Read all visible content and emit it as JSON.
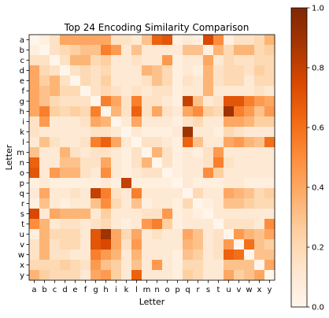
{
  "chart_data": {
    "type": "heatmap",
    "title": "Top 24 Encoding Similarity Comparison",
    "xlabel": "Letter",
    "ylabel": "Letter",
    "x_labels": [
      "a",
      "b",
      "c",
      "d",
      "e",
      "f",
      "g",
      "h",
      "i",
      "k",
      "l",
      "m",
      "n",
      "o",
      "p",
      "q",
      "r",
      "s",
      "t",
      "u",
      "v",
      "w",
      "x",
      "y"
    ],
    "y_labels": [
      "a",
      "b",
      "c",
      "d",
      "e",
      "f",
      "g",
      "h",
      "i",
      "k",
      "l",
      "m",
      "n",
      "o",
      "p",
      "q",
      "r",
      "s",
      "t",
      "u",
      "v",
      "w",
      "x",
      "y"
    ],
    "colormap": "Oranges",
    "colorbar": {
      "min": 0.0,
      "max": 1.0,
      "ticks": [
        "0.0",
        "0.2",
        "0.4",
        "0.6",
        "0.8",
        "1.0"
      ]
    },
    "values": [
      [
        0.0,
        0.05,
        0.15,
        0.4,
        0.4,
        0.4,
        0.4,
        0.4,
        0.15,
        0.15,
        0.1,
        0.3,
        0.65,
        0.7,
        0.05,
        0.1,
        0.05,
        0.75,
        0.5,
        0.05,
        0.15,
        0.15,
        0.2,
        0.35
      ],
      [
        0.05,
        0.0,
        0.15,
        0.2,
        0.25,
        0.3,
        0.3,
        0.55,
        0.45,
        0.1,
        0.3,
        0.1,
        0.1,
        0.1,
        0.1,
        0.3,
        0.3,
        0.05,
        0.35,
        0.2,
        0.35,
        0.35,
        0.2,
        0.25
      ],
      [
        0.15,
        0.15,
        0.0,
        0.15,
        0.35,
        0.35,
        0.2,
        0.25,
        0.1,
        0.1,
        0.15,
        0.1,
        0.1,
        0.45,
        0.05,
        0.1,
        0.1,
        0.4,
        0.1,
        0.2,
        0.15,
        0.15,
        0.2,
        0.2
      ],
      [
        0.4,
        0.2,
        0.15,
        0.0,
        0.15,
        0.2,
        0.15,
        0.2,
        0.1,
        0.1,
        0.1,
        0.35,
        0.3,
        0.2,
        0.05,
        0.1,
        0.05,
        0.35,
        0.15,
        0.2,
        0.2,
        0.15,
        0.25,
        0.2
      ],
      [
        0.4,
        0.25,
        0.35,
        0.15,
        0.0,
        0.2,
        0.15,
        0.25,
        0.1,
        0.1,
        0.1,
        0.15,
        0.3,
        0.2,
        0.05,
        0.15,
        0.1,
        0.35,
        0.15,
        0.2,
        0.2,
        0.1,
        0.2,
        0.2
      ],
      [
        0.4,
        0.3,
        0.35,
        0.2,
        0.2,
        0.0,
        0.15,
        0.2,
        0.15,
        0.1,
        0.15,
        0.1,
        0.15,
        0.15,
        0.05,
        0.1,
        0.1,
        0.35,
        0.1,
        0.1,
        0.1,
        0.1,
        0.15,
        0.1
      ],
      [
        0.4,
        0.3,
        0.2,
        0.15,
        0.15,
        0.15,
        0.0,
        0.55,
        0.4,
        0.15,
        0.55,
        0.15,
        0.15,
        0.1,
        0.05,
        0.8,
        0.3,
        0.1,
        0.15,
        0.7,
        0.7,
        0.55,
        0.45,
        0.4
      ],
      [
        0.4,
        0.55,
        0.25,
        0.2,
        0.25,
        0.2,
        0.55,
        0.0,
        0.35,
        0.15,
        0.65,
        0.15,
        0.4,
        0.15,
        0.1,
        0.4,
        0.5,
        0.25,
        0.2,
        0.9,
        0.55,
        0.45,
        0.3,
        0.45
      ],
      [
        0.15,
        0.45,
        0.1,
        0.1,
        0.1,
        0.15,
        0.4,
        0.35,
        0.0,
        0.1,
        0.4,
        0.1,
        0.1,
        0.1,
        0.05,
        0.15,
        0.2,
        0.1,
        0.1,
        0.4,
        0.4,
        0.35,
        0.25,
        0.25
      ],
      [
        0.15,
        0.1,
        0.1,
        0.1,
        0.1,
        0.1,
        0.15,
        0.15,
        0.1,
        0.0,
        0.1,
        0.05,
        0.05,
        0.05,
        0.1,
        0.9,
        0.1,
        0.1,
        0.05,
        0.2,
        0.15,
        0.1,
        0.1,
        0.1
      ],
      [
        0.1,
        0.3,
        0.15,
        0.1,
        0.1,
        0.15,
        0.55,
        0.65,
        0.4,
        0.1,
        0.0,
        0.15,
        0.15,
        0.1,
        0.05,
        0.65,
        0.3,
        0.1,
        0.1,
        0.4,
        0.45,
        0.35,
        0.3,
        0.6
      ],
      [
        0.3,
        0.1,
        0.1,
        0.35,
        0.15,
        0.1,
        0.15,
        0.15,
        0.1,
        0.05,
        0.15,
        0.0,
        0.35,
        0.15,
        0.05,
        0.1,
        0.05,
        0.15,
        0.45,
        0.1,
        0.1,
        0.1,
        0.1,
        0.1
      ],
      [
        0.65,
        0.1,
        0.1,
        0.3,
        0.3,
        0.15,
        0.15,
        0.4,
        0.1,
        0.05,
        0.15,
        0.35,
        0.0,
        0.15,
        0.05,
        0.1,
        0.1,
        0.15,
        0.55,
        0.15,
        0.1,
        0.1,
        0.1,
        0.1
      ],
      [
        0.7,
        0.1,
        0.45,
        0.35,
        0.35,
        0.15,
        0.1,
        0.5,
        0.1,
        0.05,
        0.1,
        0.15,
        0.15,
        0.0,
        0.05,
        0.1,
        0.1,
        0.5,
        0.25,
        0.1,
        0.1,
        0.1,
        0.1,
        0.1
      ],
      [
        0.05,
        0.1,
        0.05,
        0.05,
        0.05,
        0.05,
        0.05,
        0.1,
        0.05,
        0.8,
        0.05,
        0.05,
        0.05,
        0.05,
        0.0,
        0.1,
        0.05,
        0.05,
        0.05,
        0.1,
        0.1,
        0.05,
        0.05,
        0.05
      ],
      [
        0.1,
        0.4,
        0.1,
        0.1,
        0.15,
        0.1,
        0.8,
        0.55,
        0.15,
        0.1,
        0.55,
        0.1,
        0.1,
        0.1,
        0.1,
        0.0,
        0.2,
        0.1,
        0.1,
        0.4,
        0.35,
        0.3,
        0.2,
        0.25
      ],
      [
        0.05,
        0.3,
        0.1,
        0.05,
        0.1,
        0.1,
        0.3,
        0.5,
        0.2,
        0.1,
        0.3,
        0.05,
        0.1,
        0.1,
        0.05,
        0.2,
        0.0,
        0.05,
        0.1,
        0.3,
        0.3,
        0.25,
        0.2,
        0.2
      ],
      [
        0.75,
        0.1,
        0.4,
        0.35,
        0.35,
        0.35,
        0.1,
        0.25,
        0.1,
        0.1,
        0.1,
        0.15,
        0.15,
        0.45,
        0.05,
        0.1,
        0.05,
        0.0,
        0.1,
        0.1,
        0.1,
        0.1,
        0.1,
        0.1
      ],
      [
        0.5,
        0.35,
        0.1,
        0.15,
        0.15,
        0.1,
        0.15,
        0.2,
        0.1,
        0.05,
        0.1,
        0.45,
        0.55,
        0.25,
        0.05,
        0.1,
        0.1,
        0.1,
        0.0,
        0.15,
        0.15,
        0.15,
        0.1,
        0.5
      ],
      [
        0.05,
        0.35,
        0.2,
        0.2,
        0.2,
        0.1,
        0.7,
        0.9,
        0.4,
        0.2,
        0.4,
        0.1,
        0.15,
        0.1,
        0.1,
        0.4,
        0.3,
        0.1,
        0.15,
        0.0,
        0.45,
        0.35,
        0.3,
        0.4
      ],
      [
        0.15,
        0.35,
        0.15,
        0.2,
        0.2,
        0.1,
        0.7,
        0.75,
        0.4,
        0.15,
        0.45,
        0.1,
        0.1,
        0.1,
        0.1,
        0.35,
        0.3,
        0.1,
        0.15,
        0.45,
        0.0,
        0.6,
        0.3,
        0.25
      ],
      [
        0.15,
        0.35,
        0.15,
        0.15,
        0.1,
        0.1,
        0.55,
        0.45,
        0.35,
        0.1,
        0.35,
        0.1,
        0.1,
        0.1,
        0.05,
        0.3,
        0.25,
        0.1,
        0.15,
        0.65,
        0.6,
        0.0,
        0.3,
        0.3
      ],
      [
        0.2,
        0.2,
        0.2,
        0.25,
        0.2,
        0.15,
        0.45,
        0.3,
        0.25,
        0.1,
        0.3,
        0.1,
        0.45,
        0.1,
        0.05,
        0.2,
        0.2,
        0.1,
        0.1,
        0.3,
        0.3,
        0.3,
        0.0,
        0.4
      ],
      [
        0.35,
        0.25,
        0.2,
        0.2,
        0.2,
        0.1,
        0.4,
        0.45,
        0.25,
        0.1,
        0.65,
        0.1,
        0.1,
        0.1,
        0.05,
        0.25,
        0.2,
        0.1,
        0.1,
        0.4,
        0.25,
        0.3,
        0.4,
        0.0
      ]
    ]
  }
}
